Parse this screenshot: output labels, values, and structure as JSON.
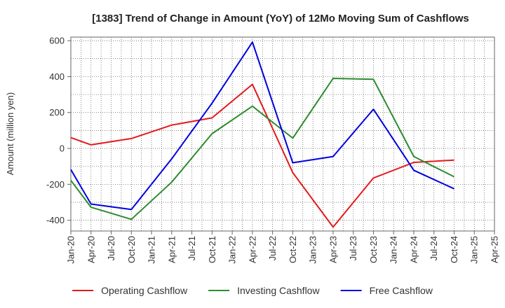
{
  "chart_data": {
    "type": "line",
    "title": "[1383]  Trend of Change in Amount (YoY) of 12Mo Moving Sum of Cashflows",
    "xlabel": "",
    "ylabel": "Amount (million yen)",
    "ylim": [
      -460,
      620
    ],
    "yticks": [
      600,
      400,
      200,
      0,
      -200,
      -400
    ],
    "ytick_labels": [
      "600",
      "400",
      "200",
      "0",
      "-200",
      "-400"
    ],
    "x_categories": [
      "Jan-20",
      "Apr-20",
      "Jul-20",
      "Oct-20",
      "Jan-21",
      "Apr-21",
      "Jul-21",
      "Oct-21",
      "Jan-22",
      "Apr-22",
      "Jul-22",
      "Oct-22",
      "Jan-23",
      "Apr-23",
      "Jul-23",
      "Oct-23",
      "Jan-24",
      "Apr-24",
      "Jul-24",
      "Oct-24",
      "Jan-25",
      "Apr-25"
    ],
    "grid": true,
    "legend_position": "bottom",
    "series": [
      {
        "name": "Operating Cashflow",
        "color": "#e31a1c",
        "points": [
          {
            "x": "Jan-20",
            "y": 60
          },
          {
            "x": "Apr-20",
            "y": 20
          },
          {
            "x": "Oct-20",
            "y": 55
          },
          {
            "x": "Apr-21",
            "y": 130
          },
          {
            "x": "Oct-21",
            "y": 170
          },
          {
            "x": "Apr-22",
            "y": 357
          },
          {
            "x": "Oct-22",
            "y": -135
          },
          {
            "x": "Apr-23",
            "y": -438
          },
          {
            "x": "Oct-23",
            "y": -165
          },
          {
            "x": "Apr-24",
            "y": -78
          },
          {
            "x": "Oct-24",
            "y": -65
          }
        ]
      },
      {
        "name": "Investing Cashflow",
        "color": "#2e8b2e",
        "points": [
          {
            "x": "Jan-20",
            "y": -178
          },
          {
            "x": "Apr-20",
            "y": -328
          },
          {
            "x": "Oct-20",
            "y": -395
          },
          {
            "x": "Apr-21",
            "y": -188
          },
          {
            "x": "Oct-21",
            "y": 82
          },
          {
            "x": "Apr-22",
            "y": 235
          },
          {
            "x": "Oct-22",
            "y": 57
          },
          {
            "x": "Apr-23",
            "y": 390
          },
          {
            "x": "Oct-23",
            "y": 385
          },
          {
            "x": "Apr-24",
            "y": -45
          },
          {
            "x": "Oct-24",
            "y": -158
          }
        ]
      },
      {
        "name": "Free Cashflow",
        "color": "#0000dd",
        "points": [
          {
            "x": "Jan-20",
            "y": -118
          },
          {
            "x": "Apr-20",
            "y": -310
          },
          {
            "x": "Oct-20",
            "y": -340
          },
          {
            "x": "Apr-21",
            "y": -58
          },
          {
            "x": "Oct-21",
            "y": 252
          },
          {
            "x": "Apr-22",
            "y": 592
          },
          {
            "x": "Oct-22",
            "y": -80
          },
          {
            "x": "Apr-23",
            "y": -45
          },
          {
            "x": "Oct-23",
            "y": 218
          },
          {
            "x": "Apr-24",
            "y": -122
          },
          {
            "x": "Oct-24",
            "y": -225
          }
        ]
      }
    ]
  }
}
